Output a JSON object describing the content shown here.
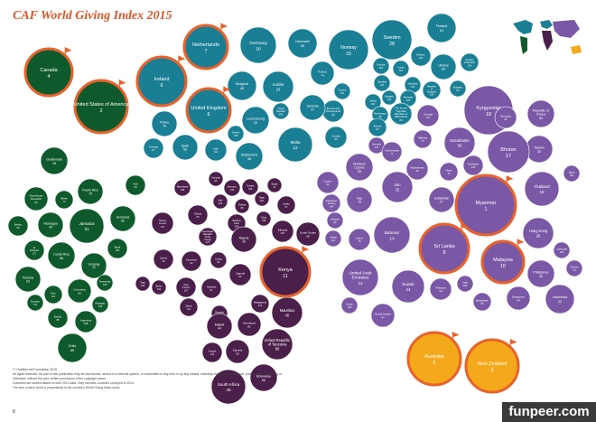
{
  "chart_data": {
    "type": "bubble",
    "title": "CAF World Giving Index 2015",
    "size_encoding": "The size of each circle is proportional to the country's World Giving Index score.",
    "regions": [
      {
        "name": "Americas",
        "color": "#0e5a2c"
      },
      {
        "name": "Europe",
        "color": "#1a7f95"
      },
      {
        "name": "Africa",
        "color": "#4a1f49"
      },
      {
        "name": "Asia",
        "color": "#7a58a6"
      },
      {
        "name": "Oceania",
        "color": "#f4a91a"
      }
    ],
    "highlight_color": "#e8622b",
    "bubbles": [
      {
        "label": "Canada",
        "rank": "4",
        "region": "Americas",
        "top10": true
      },
      {
        "label": "United States of America",
        "rank": "2",
        "region": "Americas",
        "top10": true
      },
      {
        "label": "Guatemala",
        "rank": "16",
        "region": "Americas"
      },
      {
        "label": "Haiti",
        "rank": "59",
        "region": "Americas"
      },
      {
        "label": "Puerto Rico",
        "rank": "75",
        "region": "Americas"
      },
      {
        "label": "Dominican Republic",
        "rank": "61",
        "region": "Americas"
      },
      {
        "label": "Belize",
        "rank": "70",
        "region": "Americas"
      },
      {
        "label": "Mexico",
        "rank": "90",
        "region": "Americas"
      },
      {
        "label": "Nicaragua",
        "rank": "49",
        "region": "Americas"
      },
      {
        "label": "Jamaica",
        "rank": "21",
        "region": "Americas"
      },
      {
        "label": "Honduras",
        "rank": "60",
        "region": "Americas"
      },
      {
        "label": "El Salvador",
        "rank": "117",
        "region": "Americas"
      },
      {
        "label": "Costa Rica",
        "rank": "56",
        "region": "Americas"
      },
      {
        "label": "Brazil",
        "rank": "105",
        "region": "Americas"
      },
      {
        "label": "Uruguay",
        "rank": "77",
        "region": "Americas"
      },
      {
        "label": "Panama",
        "rank": "53",
        "region": "Americas"
      },
      {
        "label": "Peru",
        "rank": "114",
        "region": "Americas"
      },
      {
        "label": "Colombia",
        "rank": "66",
        "region": "Americas"
      },
      {
        "label": "Venezuela",
        "rank": "128",
        "region": "Americas"
      },
      {
        "label": "Ecuador",
        "rank": "131",
        "region": "Americas"
      },
      {
        "label": "Paraguay",
        "rank": "125",
        "region": "Americas"
      },
      {
        "label": "Bolivia",
        "rank": "85",
        "region": "Americas"
      },
      {
        "label": "Argentina",
        "rank": "108",
        "region": "Americas"
      },
      {
        "label": "Chile",
        "rank": "69",
        "region": "Americas"
      },
      {
        "label": "Ireland",
        "rank": "6",
        "region": "Europe",
        "top10": true
      },
      {
        "label": "Netherlands",
        "rank": "7",
        "region": "Europe",
        "top10": true
      },
      {
        "label": "Germany",
        "rank": "20",
        "region": "Europe"
      },
      {
        "label": "Denmark",
        "rank": "35",
        "region": "Europe"
      },
      {
        "label": "Norway",
        "rank": "15",
        "region": "Europe"
      },
      {
        "label": "Sweden",
        "rank": "28",
        "region": "Europe"
      },
      {
        "label": "Finland",
        "rank": "31",
        "region": "Europe"
      },
      {
        "label": "Belarus",
        "rank": "103",
        "region": "Europe"
      },
      {
        "label": "Ukraine",
        "rank": "89",
        "region": "Europe"
      },
      {
        "label": "Russian Federation",
        "rank": "126",
        "region": "Europe"
      },
      {
        "label": "Estonia",
        "rank": "115",
        "region": "Europe"
      },
      {
        "label": "Latvia",
        "rank": "113",
        "region": "Europe"
      },
      {
        "label": "Lithuania",
        "rank": "129",
        "region": "Europe"
      },
      {
        "label": "Slovakia",
        "rank": "123",
        "region": "Europe"
      },
      {
        "label": "Hungary",
        "rank": "133",
        "region": "Europe"
      },
      {
        "label": "Romania",
        "rank": "106",
        "region": "Europe"
      },
      {
        "label": "Republic of Moldova",
        "rank": "120",
        "region": "Europe"
      },
      {
        "label": "Bulgaria",
        "rank": "111",
        "region": "Europe"
      },
      {
        "label": "Belgium",
        "rank": "48",
        "region": "Europe"
      },
      {
        "label": "Austria",
        "rank": "23",
        "region": "Europe"
      },
      {
        "label": "Poland",
        "rank": "74",
        "region": "Europe"
      },
      {
        "label": "Czech Republic",
        "rank": "130",
        "region": "Europe"
      },
      {
        "label": "Kosovo",
        "rank": "116",
        "region": "Europe"
      },
      {
        "label": "Serbia",
        "rank": "118",
        "region": "Europe"
      },
      {
        "label": "Montenegro",
        "rank": "98",
        "region": "Europe"
      },
      {
        "label": "The former Yugoslav Republic of Macedonia",
        "rank": "86",
        "region": "Europe"
      },
      {
        "label": "Bosnia and Herzegovina",
        "rank": "80",
        "region": "Europe"
      },
      {
        "label": "Slovenia",
        "rank": "27",
        "region": "Europe"
      },
      {
        "label": "Albania",
        "rank": "83",
        "region": "Europe"
      },
      {
        "label": "Croatia",
        "rank": "62",
        "region": "Europe"
      },
      {
        "label": "United Kingdom",
        "rank": "6",
        "region": "Europe",
        "top10": true
      },
      {
        "label": "Luxembourg",
        "rank": "33",
        "region": "Europe"
      },
      {
        "label": "France",
        "rank": "76",
        "region": "Europe"
      },
      {
        "label": "Portugal",
        "rank": "87",
        "region": "Europe"
      },
      {
        "label": "Spain",
        "rank": "58",
        "region": "Europe"
      },
      {
        "label": "Italy",
        "rank": "112",
        "region": "Europe"
      },
      {
        "label": "Switzerland",
        "rank": "48",
        "region": "Europe"
      },
      {
        "label": "Greece",
        "rank": "135",
        "region": "Europe"
      },
      {
        "label": "Malta",
        "rank": "12",
        "region": "Europe"
      },
      {
        "label": "Georgia",
        "rank": "112",
        "region": "Asia"
      },
      {
        "label": "Armenia",
        "rank": "124",
        "region": "Asia"
      },
      {
        "label": "Morocco",
        "rank": "136",
        "region": "Africa"
      },
      {
        "label": "Tunisia",
        "rank": "136",
        "region": "Africa"
      },
      {
        "label": "Egypt",
        "rank": "11",
        "region": "Africa"
      },
      {
        "label": "Senegal",
        "rank": "95",
        "region": "Africa"
      },
      {
        "label": "Mauritania",
        "rank": "109",
        "region": "Africa"
      },
      {
        "label": "Mali",
        "rank": "121",
        "region": "Africa"
      },
      {
        "label": "Niger",
        "rank": "110",
        "region": "Africa"
      },
      {
        "label": "Guinea",
        "rank": "80",
        "region": "Africa"
      },
      {
        "label": "Sudan",
        "rank": "67",
        "region": "Africa"
      },
      {
        "label": "Ghana",
        "rank": "63",
        "region": "Africa"
      },
      {
        "label": "Burkina Faso",
        "rank": "104",
        "region": "Africa"
      },
      {
        "label": "Chad",
        "rank": "138",
        "region": "Africa"
      },
      {
        "label": "Sierra Leone",
        "rank": "54",
        "region": "Africa"
      },
      {
        "label": "Democratic Republic of the Congo",
        "rank": "127",
        "region": "Africa"
      },
      {
        "label": "Nigeria",
        "rank": "43",
        "region": "Africa"
      },
      {
        "label": "Ethiopia",
        "rank": "107",
        "region": "Africa"
      },
      {
        "label": "South Sudan",
        "rank": "68",
        "region": "Africa"
      },
      {
        "label": "Liberia",
        "rank": "25",
        "region": "Africa"
      },
      {
        "label": "Cameroon",
        "rank": "92",
        "region": "Africa"
      },
      {
        "label": "Congo",
        "rank": "91",
        "region": "Africa"
      },
      {
        "label": "Togo",
        "rank": "133",
        "region": "Africa"
      },
      {
        "label": "Benin",
        "rank": "132",
        "region": "Africa"
      },
      {
        "label": "Cote d'Ivoire",
        "rank": "107",
        "region": "Africa"
      },
      {
        "label": "Namibia",
        "rank": "61",
        "region": "Africa"
      },
      {
        "label": "Uganda",
        "rank": "51",
        "region": "Africa"
      },
      {
        "label": "Kenya",
        "rank": "11",
        "region": "Africa",
        "top10": true
      },
      {
        "label": "Gabon",
        "rank": "111",
        "region": "Africa"
      },
      {
        "label": "Rwanda",
        "rank": "84",
        "region": "Africa"
      },
      {
        "label": "Madagascar",
        "rank": "101",
        "region": "Africa"
      },
      {
        "label": "Mauritius",
        "rank": "45",
        "region": "Africa"
      },
      {
        "label": "Malawi",
        "rank": "44",
        "region": "Africa"
      },
      {
        "label": "Zimbabwe",
        "rank": "81",
        "region": "Africa"
      },
      {
        "label": "Angola",
        "rank": "134",
        "region": "Africa"
      },
      {
        "label": "Zambia",
        "rank": "55",
        "region": "Africa"
      },
      {
        "label": "United Republic of Tanzania",
        "rank": "80",
        "region": "Africa"
      },
      {
        "label": "Botswana",
        "rank": "55",
        "region": "Africa"
      },
      {
        "label": "South Africa",
        "rank": "49",
        "region": "Africa"
      },
      {
        "label": "Cyprus",
        "rank": "42",
        "region": "Asia"
      },
      {
        "label": "Northern Cyprus",
        "rank": "50",
        "region": "Asia"
      },
      {
        "label": "Turkmenistan",
        "rank": "71",
        "region": "Asia"
      },
      {
        "label": "Tajikistan",
        "rank": "73",
        "region": "Asia"
      },
      {
        "label": "Kyrgyzstan",
        "rank": "18",
        "region": "Asia"
      },
      {
        "label": "Kazakhstan",
        "rank": "56",
        "region": "Asia"
      },
      {
        "label": "Mongolia",
        "rank": "52",
        "region": "Asia"
      },
      {
        "label": "Republic of Korea",
        "rank": "64",
        "region": "Asia"
      },
      {
        "label": "Taiwan",
        "rank": "35",
        "region": "Asia"
      },
      {
        "label": "Japan",
        "rank": "102",
        "region": "Asia"
      },
      {
        "label": "Bhutan",
        "rank": "17",
        "region": "Asia"
      },
      {
        "label": "Azerbaijan",
        "rank": "132",
        "region": "Asia"
      },
      {
        "label": "Afghanistan",
        "rank": "46",
        "region": "Asia"
      },
      {
        "label": "Nepal",
        "rank": "76",
        "region": "Asia"
      },
      {
        "label": "Iran",
        "rank": "32",
        "region": "Asia"
      },
      {
        "label": "Uzbekistan",
        "rank": "37",
        "region": "Asia"
      },
      {
        "label": "Myanmar",
        "rank": "1",
        "region": "Asia",
        "top10": true
      },
      {
        "label": "Thailand",
        "rank": "19",
        "region": "Asia"
      },
      {
        "label": "Palestinian Territory",
        "rank": "143",
        "region": "Asia"
      },
      {
        "label": "Lebanon",
        "rank": "96",
        "region": "Asia"
      },
      {
        "label": "Iraq",
        "rank": "78",
        "region": "Asia"
      },
      {
        "label": "Jordan",
        "rank": "110",
        "region": "Asia"
      },
      {
        "label": "Israel",
        "rank": "75",
        "region": "Asia"
      },
      {
        "label": "Bahrain",
        "rank": "13",
        "region": "Asia"
      },
      {
        "label": "Sri Lanka",
        "rank": "8",
        "region": "Asia",
        "top10": true
      },
      {
        "label": "Hong Kong",
        "rank": "26",
        "region": "Asia"
      },
      {
        "label": "Cambodia",
        "rank": "100",
        "region": "Asia"
      },
      {
        "label": "Malaysia",
        "rank": "10",
        "region": "Asia",
        "top10": true
      },
      {
        "label": "Philippines",
        "rank": "46",
        "region": "Asia"
      },
      {
        "label": "Vietnam",
        "rank": "79",
        "region": "Asia"
      },
      {
        "label": "United Arab Emirates",
        "rank": "14",
        "region": "Asia"
      },
      {
        "label": "Kuwait",
        "rank": "24",
        "region": "Asia"
      },
      {
        "label": "Pakistan",
        "rank": "94",
        "region": "Asia"
      },
      {
        "label": "India",
        "rank": "106",
        "region": "Asia"
      },
      {
        "label": "Bangladesh",
        "rank": "95",
        "region": "Asia"
      },
      {
        "label": "Singapore",
        "rank": "34",
        "region": "Asia"
      },
      {
        "label": "Indonesia",
        "rank": "22",
        "region": "Asia"
      },
      {
        "label": "Yemen",
        "rank": "140",
        "region": "Asia"
      },
      {
        "label": "Saudi Arabia",
        "rank": "47",
        "region": "Asia"
      },
      {
        "label": "Australia",
        "rank": "5",
        "region": "Oceania",
        "top10": true
      },
      {
        "label": "New Zealand",
        "rank": "3",
        "region": "Oceania",
        "top10": true
      }
    ]
  },
  "footer": {
    "copyright": "© Charities Aid Foundation 2015",
    "rights": "All rights reserved. No part of this publication may be reproduced, stored in a retrieval system, or transmitted in any form or by any means, including electronic, mechanical, photocopying, recording or otherwise, without the prior written permission of the copyright owner.",
    "note": "Countries are ranked based on their 2014 data. Only includes countries surveyed in 2014.",
    "size_note": "The size of each circle is proportional to the country's World Giving Index score.",
    "page_number": "8"
  },
  "watermark": "funpeer.com"
}
